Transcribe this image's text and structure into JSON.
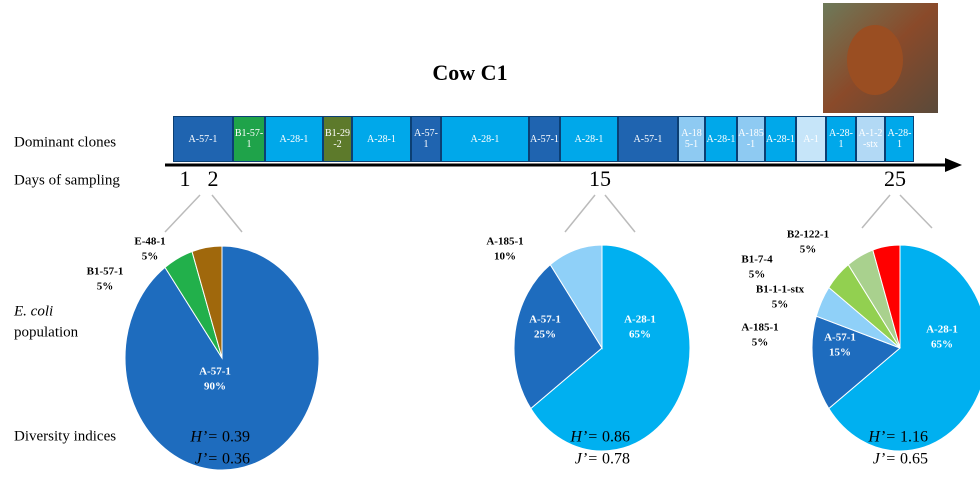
{
  "title": "Cow C1",
  "row_labels": {
    "clones": "Dominant clones",
    "days": "Days of sampling",
    "population_1": "E. coli",
    "population_2": "population",
    "diversity": "Diversity indices"
  },
  "timeline": [
    {
      "label": "A-57-1",
      "color": "#1f64b0"
    },
    {
      "label": "B1-57-1",
      "color": "#1fa34a"
    },
    {
      "label": "A-28-1",
      "color": "#00a8ea"
    },
    {
      "label": "B1-29-2",
      "color": "#5d7a2b"
    },
    {
      "label": "A-28-1",
      "color": "#00a8ea"
    },
    {
      "label": "A-57-1",
      "color": "#1f64b0"
    },
    {
      "label": "A-28-1",
      "color": "#00a8ea"
    },
    {
      "label": "A-57-1",
      "color": "#1f64b0"
    },
    {
      "label": "A-28-1",
      "color": "#00a8ea"
    },
    {
      "label": "A-57-1",
      "color": "#1f64b0"
    },
    {
      "label": "A-185-1",
      "color": "#8ecaf2"
    },
    {
      "label": "A-28-1",
      "color": "#00a8ea"
    },
    {
      "label": "A-185-1",
      "color": "#8ecaf2"
    },
    {
      "label": "A-28-1",
      "color": "#00a8ea"
    },
    {
      "label": "A-1",
      "color": "#c6e5f9"
    },
    {
      "label": "A-28-1",
      "color": "#00a8ea"
    },
    {
      "label": "A-1-2-stx",
      "color": "#b2d9f5"
    },
    {
      "label": "A-28-1",
      "color": "#00a8ea"
    }
  ],
  "days": [
    "1",
    "2",
    "15",
    "25"
  ],
  "diversity_labels": {
    "H": "H’=",
    "J": "J’="
  },
  "diversity": [
    {
      "H": 0.39,
      "J": 0.36
    },
    {
      "H": 0.86,
      "J": 0.78
    },
    {
      "H": 1.16,
      "J": 0.65
    }
  ],
  "chart_data": [
    {
      "type": "pie",
      "categories": [
        "A-57-1",
        "B1-57-1",
        "E-48-1"
      ],
      "values": [
        90,
        5,
        5
      ],
      "value_labels": [
        "90%",
        "5%",
        "5%"
      ],
      "colors": [
        "#1e6cbe",
        "#22b04b",
        "#a0680c"
      ]
    },
    {
      "type": "pie",
      "categories": [
        "A-28-1",
        "A-57-1",
        "A-185-1"
      ],
      "values": [
        65,
        25,
        10
      ],
      "value_labels": [
        "65%",
        "25%",
        "10%"
      ],
      "colors": [
        "#00b0f0",
        "#1e6cbe",
        "#8fd0f8"
      ]
    },
    {
      "type": "pie",
      "categories": [
        "A-28-1",
        "A-57-1",
        "A-185-1",
        "B1-1-1-stx",
        "B1-7-4",
        "B2-122-1"
      ],
      "values": [
        65,
        15,
        5,
        5,
        5,
        5
      ],
      "value_labels": [
        "65%",
        "15%",
        "5%",
        "5%",
        "5%",
        "5%"
      ],
      "colors": [
        "#00b0f0",
        "#1e6cbe",
        "#8fd0f8",
        "#92d050",
        "#a9d18e",
        "#ff0000"
      ]
    }
  ]
}
